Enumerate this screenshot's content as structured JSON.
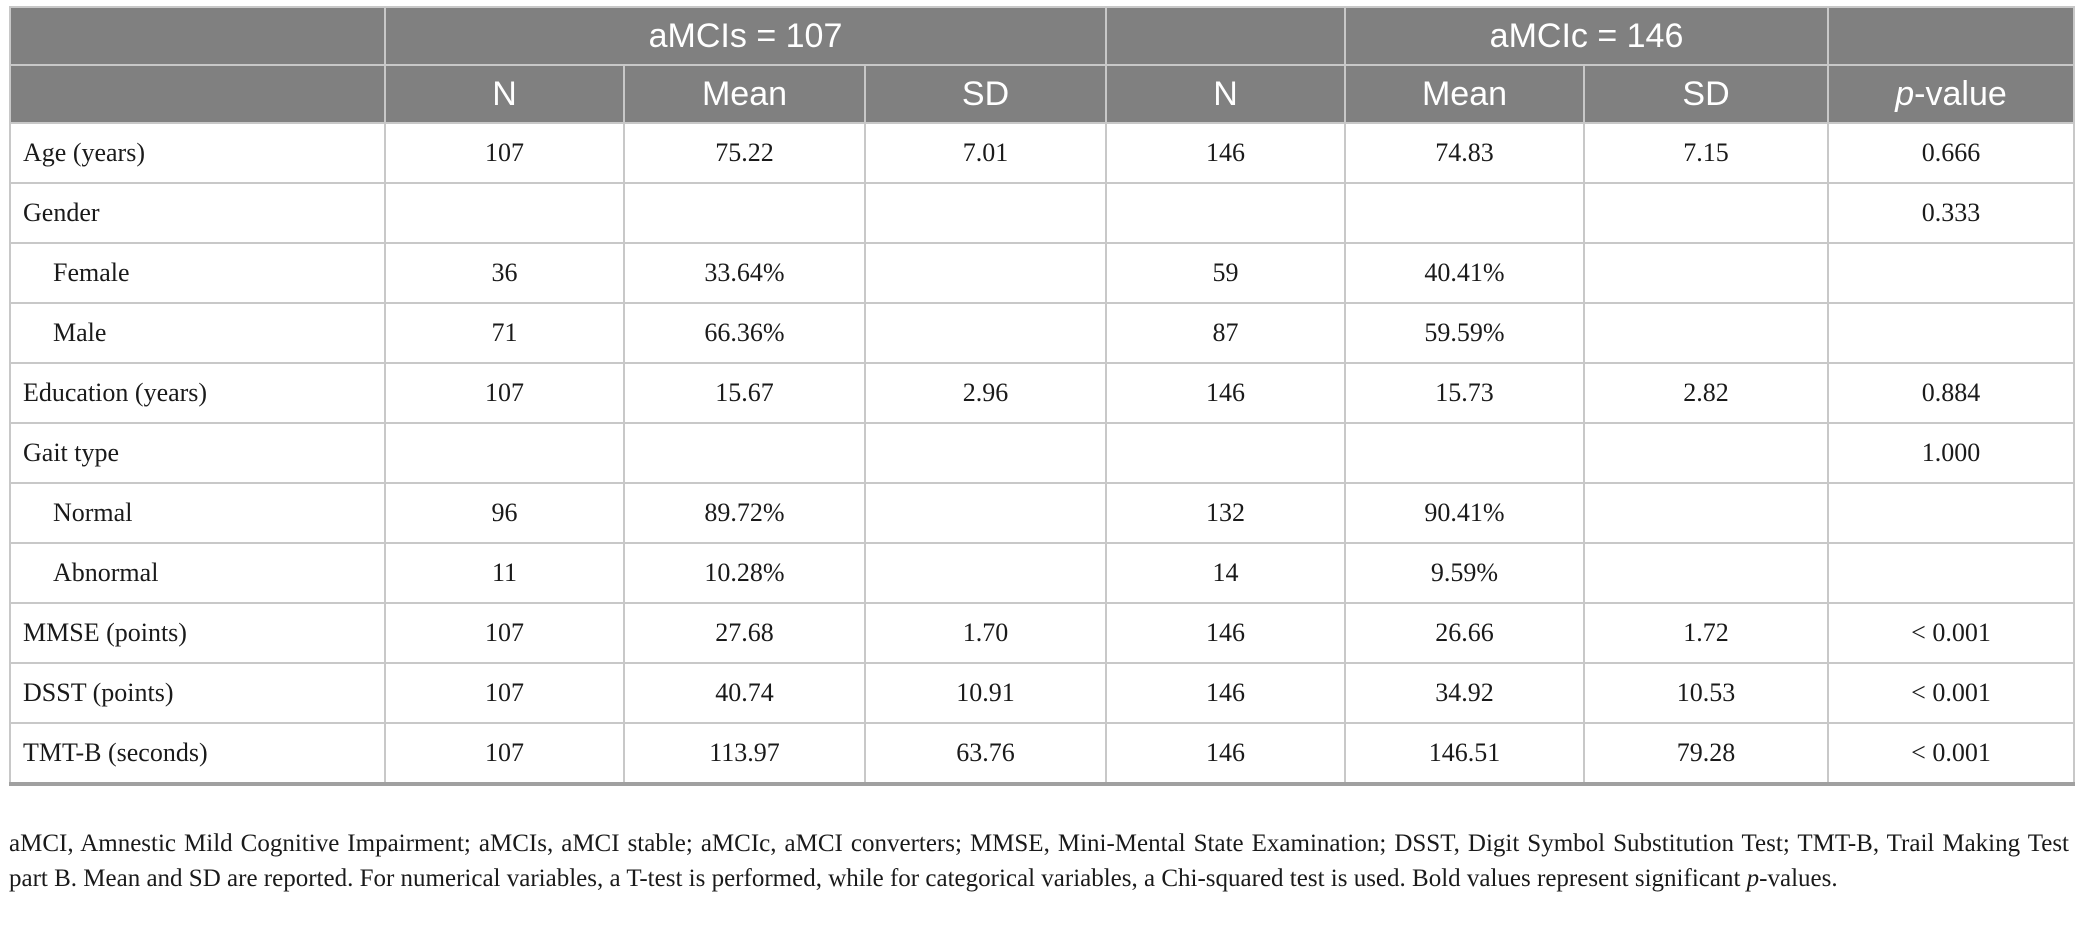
{
  "header": {
    "group_a": "aMCIs = 107",
    "group_b": "aMCIc = 146",
    "col_n": "N",
    "col_mean": "Mean",
    "col_sd": "SD",
    "col_p_italic": "p",
    "col_p_rest": "-value"
  },
  "rows": [
    {
      "label": "Age (years)",
      "indent": false,
      "a_n": "107",
      "a_mean": "75.22",
      "a_sd": "7.01",
      "b_n": "146",
      "b_mean": "74.83",
      "b_sd": "7.15",
      "p": "0.666"
    },
    {
      "label": "Gender",
      "indent": false,
      "a_n": "",
      "a_mean": "",
      "a_sd": "",
      "b_n": "",
      "b_mean": "",
      "b_sd": "",
      "p": "0.333"
    },
    {
      "label": "Female",
      "indent": true,
      "a_n": "36",
      "a_mean": "33.64%",
      "a_sd": "",
      "b_n": "59",
      "b_mean": "40.41%",
      "b_sd": "",
      "p": ""
    },
    {
      "label": "Male",
      "indent": true,
      "a_n": "71",
      "a_mean": "66.36%",
      "a_sd": "",
      "b_n": "87",
      "b_mean": "59.59%",
      "b_sd": "",
      "p": ""
    },
    {
      "label": "Education (years)",
      "indent": false,
      "a_n": "107",
      "a_mean": "15.67",
      "a_sd": "2.96",
      "b_n": "146",
      "b_mean": "15.73",
      "b_sd": "2.82",
      "p": "0.884"
    },
    {
      "label": "Gait type",
      "indent": false,
      "a_n": "",
      "a_mean": "",
      "a_sd": "",
      "b_n": "",
      "b_mean": "",
      "b_sd": "",
      "p": "1.000"
    },
    {
      "label": "Normal",
      "indent": true,
      "a_n": "96",
      "a_mean": "89.72%",
      "a_sd": "",
      "b_n": "132",
      "b_mean": "90.41%",
      "b_sd": "",
      "p": ""
    },
    {
      "label": "Abnormal",
      "indent": true,
      "a_n": "11",
      "a_mean": "10.28%",
      "a_sd": "",
      "b_n": "14",
      "b_mean": "9.59%",
      "b_sd": "",
      "p": ""
    },
    {
      "label": "MMSE (points)",
      "indent": false,
      "a_n": "107",
      "a_mean": "27.68",
      "a_sd": "1.70",
      "b_n": "146",
      "b_mean": "26.66",
      "b_sd": "1.72",
      "p": "< 0.001"
    },
    {
      "label": "DSST (points)",
      "indent": false,
      "a_n": "107",
      "a_mean": "40.74",
      "a_sd": "10.91",
      "b_n": "146",
      "b_mean": "34.92",
      "b_sd": "10.53",
      "p": "< 0.001"
    },
    {
      "label": "TMT-B (seconds)",
      "indent": false,
      "a_n": "107",
      "a_mean": "113.97",
      "a_sd": "63.76",
      "b_n": "146",
      "b_mean": "146.51",
      "b_sd": "79.28",
      "p": "< 0.001"
    }
  ],
  "footnote": {
    "main": "aMCI, Amnestic Mild Cognitive Impairment; aMCIs, aMCI stable; aMCIc, aMCI converters; MMSE, Mini-Mental State Examination; DSST, Digit Symbol Substitution Test; TMT-B, Trail Making Test part B. Mean and SD are reported. For numerical variables, a T-test is performed, while for categorical variables, a Chi-squared test is used. Bold values represent significant ",
    "p_italic": "p",
    "end": "-values."
  }
}
